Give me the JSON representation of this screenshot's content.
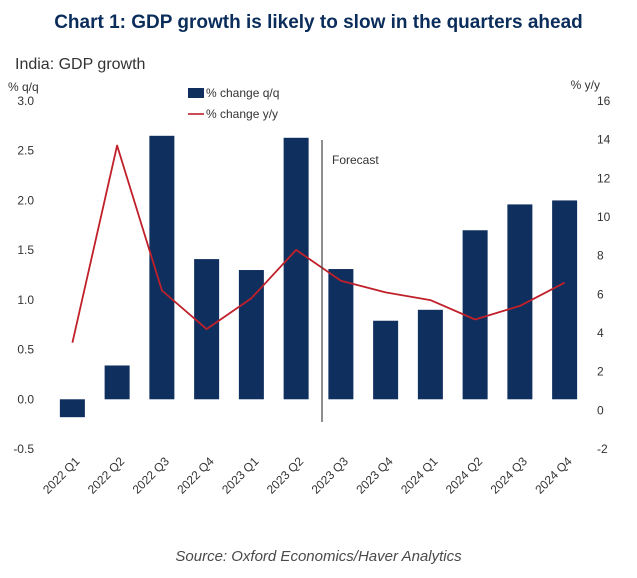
{
  "title": "Chart 1: GDP growth is likely to slow in the quarters ahead",
  "subtitle": "India: GDP growth",
  "source": "Source: Oxford Economics/Haver Analytics",
  "colors": {
    "bar": "#0f2f5f",
    "line": "#c0202a",
    "title": "#0b2d5b"
  },
  "chart_data": {
    "type": "bar",
    "categories": [
      "2022 Q1",
      "2022 Q2",
      "2022 Q3",
      "2022 Q4",
      "2023 Q1",
      "2023 Q2",
      "2023 Q3",
      "2023 Q4",
      "2024 Q1",
      "2024 Q2",
      "2024 Q3",
      "2024 Q4"
    ],
    "series": [
      {
        "name": "% change q/q",
        "type": "bar",
        "axis": "left",
        "values": [
          -0.18,
          0.34,
          2.65,
          1.41,
          1.3,
          2.63,
          1.31,
          0.79,
          0.9,
          1.7,
          1.96,
          2.0
        ]
      },
      {
        "name": "% change y/y",
        "type": "line",
        "axis": "right",
        "values": [
          3.5,
          13.7,
          6.2,
          4.2,
          5.8,
          8.3,
          6.7,
          6.1,
          5.7,
          4.7,
          5.4,
          6.6
        ]
      }
    ],
    "ylabel_left": "% q/q",
    "ylabel_right": "% y/y",
    "ylim_left": [
      -0.5,
      3.0
    ],
    "yticks_left": [
      "3.0",
      "2.5",
      "2.0",
      "1.5",
      "1.0",
      "0.5",
      "0.0",
      "-0.5"
    ],
    "ylim_right": [
      -2,
      16
    ],
    "yticks_right": [
      "16",
      "14",
      "12",
      "10",
      "8",
      "6",
      "4",
      "2",
      "0",
      "-2"
    ],
    "annotation": "Forecast",
    "forecast_after": "2023 Q2",
    "legend_position": "top-left",
    "grid": false
  }
}
